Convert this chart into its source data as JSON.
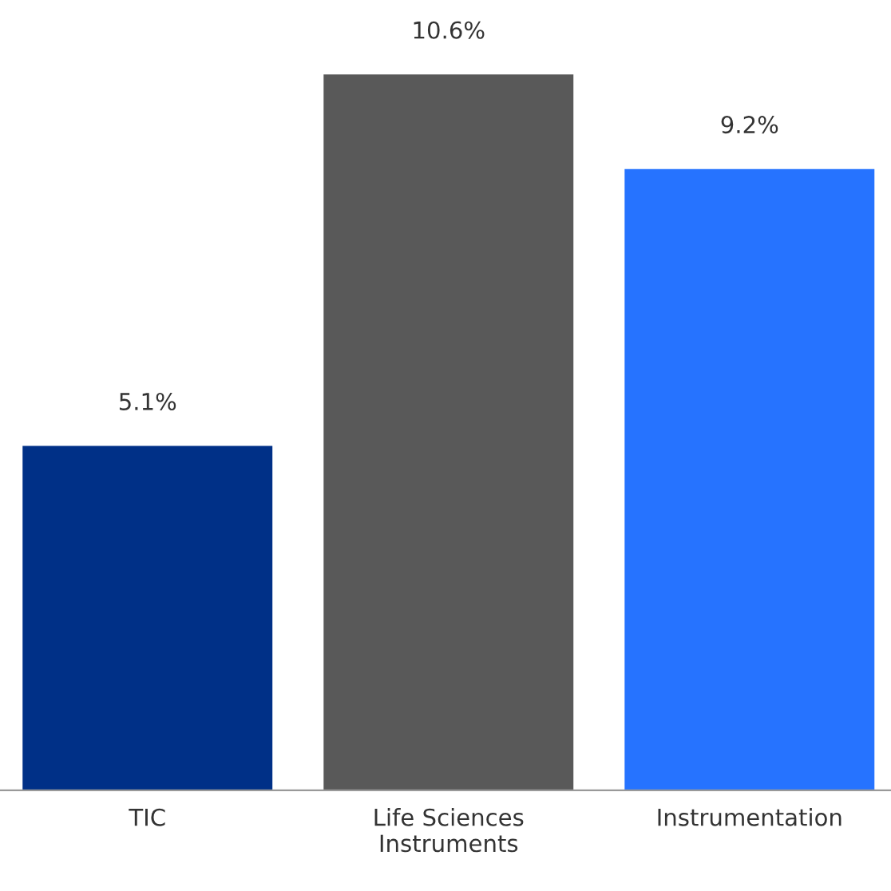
{
  "chart_data": {
    "type": "bar",
    "categories": [
      "TIC",
      "Life Sciences\nInstruments",
      "Instrumentation"
    ],
    "values": [
      5.1,
      10.6,
      9.2
    ],
    "colors": [
      "#003087",
      "#595959",
      "#2673ff"
    ],
    "value_labels": [
      "5.1%",
      "10.6%",
      "9.2%"
    ],
    "grid": false,
    "legend": false
  }
}
